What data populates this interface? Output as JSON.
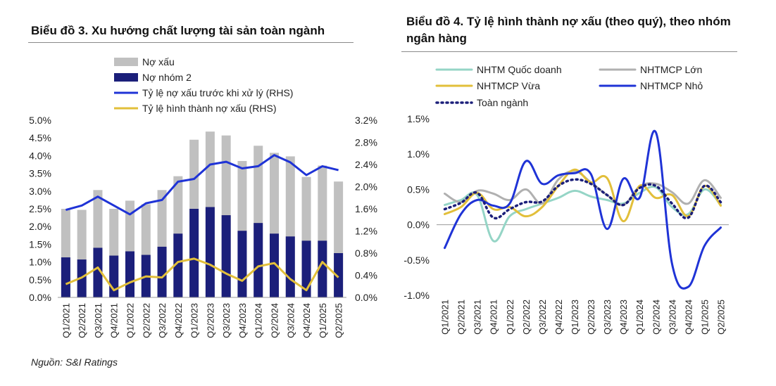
{
  "source": "Nguồn: S&I Ratings",
  "chart_data": [
    {
      "type": "bar",
      "title": "Biểu đồ 3. Xu hướng chất lượng tài sản toàn ngành",
      "categories": [
        "Q1/2021",
        "Q2/2021",
        "Q3/2021",
        "Q4/2021",
        "Q1/2022",
        "Q2/2022",
        "Q3/2022",
        "Q4/2022",
        "Q1/2023",
        "Q2/2023",
        "Q3/2023",
        "Q4/2023",
        "Q1/2024",
        "Q2/2024",
        "Q3/2024",
        "Q4/2024",
        "Q1/2025",
        "Q2/2025"
      ],
      "y_ticks": [
        "0.0%",
        "0.5%",
        "1.0%",
        "1.5%",
        "2.0%",
        "2.5%",
        "3.0%",
        "3.5%",
        "4.0%",
        "4.5%",
        "5.0%"
      ],
      "y2_ticks": [
        "0.0%",
        "0.4%",
        "0.8%",
        "1.2%",
        "1.6%",
        "2.0%",
        "2.4%",
        "2.8%",
        "3.2%"
      ],
      "ylim": [
        0,
        5.0
      ],
      "y2lim": [
        0,
        3.2
      ],
      "legend": [
        "Nợ xấu",
        "Nợ nhóm 2",
        "Tỷ lệ nợ xấu trước khi xử lý (RHS)",
        "Tỷ lệ hình thành nợ xấu (RHS)"
      ],
      "legend_position": "top-left",
      "series": [
        {
          "name": "Nợ xấu",
          "type": "bar",
          "color": "#c0c0c0",
          "axis": "left",
          "values": [
            2.5,
            2.47,
            3.03,
            2.5,
            2.73,
            2.63,
            3.03,
            3.42,
            4.45,
            4.68,
            4.57,
            3.85,
            4.28,
            4.08,
            3.98,
            3.4,
            3.72,
            3.27
          ]
        },
        {
          "name": "Nợ nhóm 2",
          "type": "bar",
          "color": "#1b1f7a",
          "axis": "left",
          "values": [
            1.13,
            1.07,
            1.4,
            1.18,
            1.3,
            1.2,
            1.43,
            1.8,
            2.5,
            2.55,
            2.32,
            1.88,
            2.1,
            1.8,
            1.72,
            1.6,
            1.6,
            1.25
          ]
        },
        {
          "name": "Tỷ lệ nợ xấu trước khi xử lý (RHS)",
          "type": "line",
          "color": "#1f33d6",
          "axis": "right",
          "values": [
            1.58,
            1.66,
            1.82,
            1.66,
            1.5,
            1.7,
            1.76,
            2.09,
            2.14,
            2.4,
            2.45,
            2.33,
            2.37,
            2.57,
            2.44,
            2.21,
            2.37,
            2.3
          ]
        },
        {
          "name": "Tỷ lệ hình thành nợ xấu (RHS)",
          "type": "line",
          "color": "#e2bf3a",
          "axis": "right",
          "values": [
            0.24,
            0.36,
            0.54,
            0.13,
            0.27,
            0.38,
            0.36,
            0.64,
            0.7,
            0.59,
            0.43,
            0.3,
            0.56,
            0.62,
            0.33,
            0.13,
            0.64,
            0.36
          ]
        }
      ]
    },
    {
      "type": "line",
      "title": "Biểu đồ 4. Tỷ lệ hình thành nợ xấu (theo quý), theo nhóm ngân hàng",
      "categories": [
        "Q1/2021",
        "Q2/2021",
        "Q3/2021",
        "Q4/2021",
        "Q1/2022",
        "Q2/2022",
        "Q3/2022",
        "Q4/2022",
        "Q1/2023",
        "Q2/2023",
        "Q3/2023",
        "Q4/2023",
        "Q1/2024",
        "Q2/2024",
        "Q3/2024",
        "Q4/2024",
        "Q1/2025",
        "Q2/2025"
      ],
      "y_ticks": [
        "-1.0%",
        "-0.5%",
        "0.0%",
        "0.5%",
        "1.0%",
        "1.5%"
      ],
      "ylim": [
        -1.0,
        1.5
      ],
      "legend": [
        "NHTM Quốc doanh",
        "NHTMCP Lớn",
        "NHTMCP Vừa",
        "NHTMCP Nhỏ",
        "Toàn ngành"
      ],
      "legend_position": "top",
      "series": [
        {
          "name": "NHTM Quốc doanh",
          "color": "#95d5c6",
          "style": "solid",
          "values": [
            0.28,
            0.35,
            0.42,
            -0.23,
            0.12,
            0.22,
            0.3,
            0.38,
            0.48,
            0.4,
            0.35,
            0.3,
            0.45,
            0.53,
            0.25,
            0.15,
            0.5,
            0.28
          ]
        },
        {
          "name": "NHTMCP Lớn",
          "color": "#b0b0b0",
          "style": "solid",
          "values": [
            0.44,
            0.32,
            0.48,
            0.44,
            0.35,
            0.5,
            0.3,
            0.64,
            0.76,
            0.6,
            0.42,
            0.28,
            0.54,
            0.58,
            0.46,
            0.3,
            0.63,
            0.38
          ]
        },
        {
          "name": "NHTMCP Vừa",
          "color": "#e2bf3a",
          "style": "solid",
          "values": [
            0.15,
            0.25,
            0.45,
            0.22,
            0.25,
            0.12,
            0.25,
            0.55,
            0.78,
            0.6,
            0.66,
            0.05,
            0.55,
            0.38,
            0.42,
            0.12,
            0.55,
            0.27
          ]
        },
        {
          "name": "NHTMCP Nhỏ",
          "color": "#1f33d6",
          "style": "solid",
          "values": [
            -0.33,
            0.15,
            0.35,
            0.27,
            0.3,
            0.9,
            0.58,
            0.7,
            0.73,
            0.72,
            -0.06,
            0.65,
            0.38,
            1.31,
            -0.55,
            -0.88,
            -0.3,
            -0.04
          ]
        },
        {
          "name": "Toàn ngành",
          "color": "#1b1f7a",
          "style": "dotted",
          "values": [
            0.22,
            0.31,
            0.45,
            0.1,
            0.22,
            0.32,
            0.33,
            0.55,
            0.64,
            0.58,
            0.42,
            0.28,
            0.52,
            0.55,
            0.3,
            0.1,
            0.55,
            0.32
          ]
        }
      ]
    }
  ]
}
